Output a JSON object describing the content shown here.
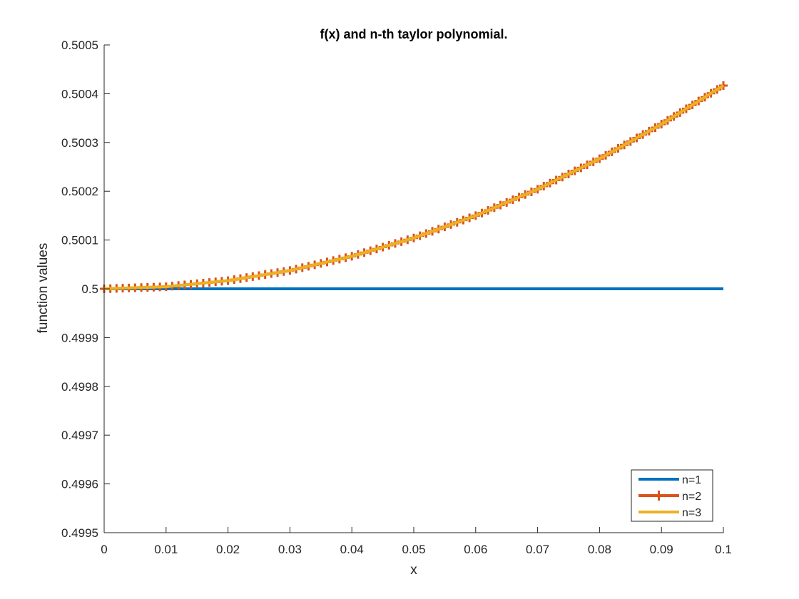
{
  "chart_data": {
    "type": "line",
    "title": "f(x) and n-th taylor polynomial.",
    "xlabel": "x",
    "ylabel": "function values",
    "xlim": [
      0,
      0.1
    ],
    "ylim": [
      0.4995,
      0.5005
    ],
    "x_ticks": [
      "0",
      "0.01",
      "0.02",
      "0.03",
      "0.04",
      "0.05",
      "0.06",
      "0.07",
      "0.08",
      "0.09",
      "0.1"
    ],
    "y_ticks": [
      "0.4995",
      "0.4996",
      "0.4997",
      "0.4998",
      "0.4999",
      "0.5",
      "0.5001",
      "0.5002",
      "0.5003",
      "0.5004",
      "0.5005"
    ],
    "grid": false,
    "legend_position": "bottom-right",
    "x_sample": [
      0,
      0.01,
      0.02,
      0.03,
      0.04,
      0.05,
      0.06,
      0.07,
      0.08,
      0.09,
      0.1
    ],
    "series": [
      {
        "name": "n=1",
        "color": "#0072BD",
        "marker": "none",
        "y": [
          0.5,
          0.5,
          0.5,
          0.5,
          0.5,
          0.5,
          0.5,
          0.5,
          0.5,
          0.5,
          0.5
        ]
      },
      {
        "name": "n=2",
        "color": "#D95319",
        "marker": "+",
        "y": [
          0.5,
          0.5000042,
          0.5000167,
          0.5000375,
          0.5000667,
          0.5001042,
          0.50015,
          0.5002042,
          0.5002667,
          0.5003375,
          0.5004167
        ]
      },
      {
        "name": "n=3",
        "color": "#EDB120",
        "marker": "none",
        "y": [
          0.5,
          0.5000042,
          0.5000167,
          0.5000375,
          0.5000667,
          0.5001042,
          0.50015,
          0.5002042,
          0.5002667,
          0.5003375,
          0.5004167
        ]
      }
    ]
  }
}
